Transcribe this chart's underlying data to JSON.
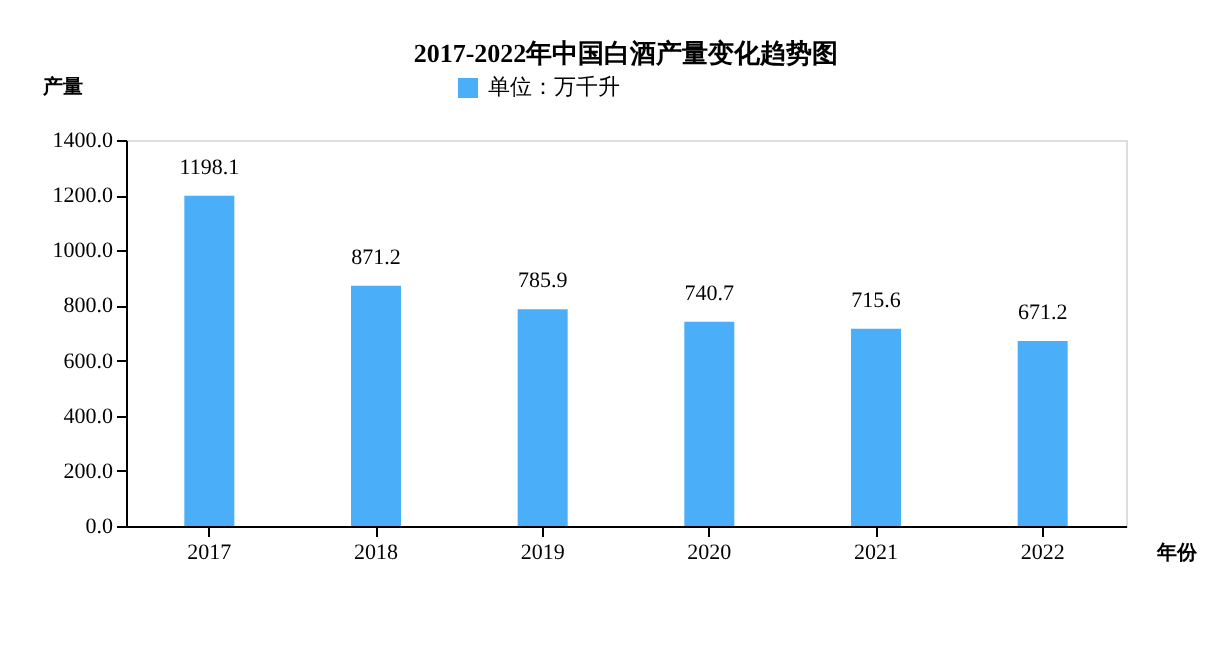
{
  "chart_data": {
    "type": "bar",
    "title": "2017-2022年中国白酒产量变化趋势图",
    "xlabel": "年份",
    "ylabel": "产量",
    "categories": [
      "2017",
      "2018",
      "2019",
      "2020",
      "2021",
      "2022"
    ],
    "series": [
      {
        "name": "单位：万千升",
        "color": "#4aaef9",
        "values": [
          1198.1,
          871.2,
          785.9,
          740.7,
          715.6,
          671.2
        ]
      }
    ],
    "ylim": [
      0,
      1400
    ],
    "yticks": [
      {
        "value": 0,
        "label": "0.0"
      },
      {
        "value": 200,
        "label": "200.0"
      },
      {
        "value": 400,
        "label": "400.0"
      },
      {
        "value": 600,
        "label": "600.0"
      },
      {
        "value": 800,
        "label": "800.0"
      },
      {
        "value": 1000,
        "label": "1000.0"
      },
      {
        "value": 1200,
        "label": "1200.0"
      },
      {
        "value": 1400,
        "label": "1400.0"
      }
    ],
    "data_labels": true,
    "legend": "top",
    "grid": false
  }
}
